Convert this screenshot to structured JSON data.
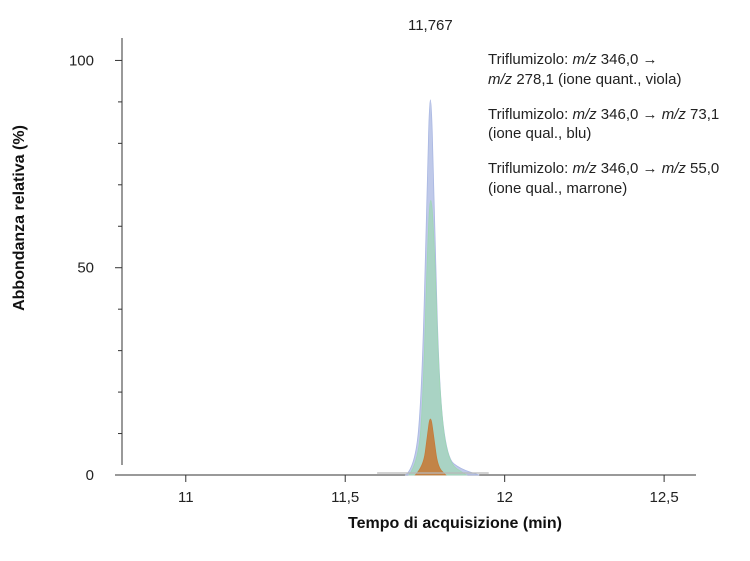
{
  "chart_data": {
    "type": "line",
    "title": "",
    "xlabel": "Tempo di acquisizione (min)",
    "ylabel": "Abbondanza relativa (%)",
    "xlim": [
      10.8,
      12.6
    ],
    "ylim": [
      0,
      103
    ],
    "x_ticks": [
      11,
      11.5,
      12,
      12.5
    ],
    "x_tick_labels": [
      "11",
      "11,5",
      "12",
      "12,5"
    ],
    "y_ticks": [
      0,
      50,
      100
    ],
    "y_tick_labels": [
      "0",
      "50",
      "100"
    ],
    "peak_label": "11,767",
    "peak_x": 11.767,
    "series": [
      {
        "name": "Triflumizolo: m/z 346,0 → m/z 278,1 (ione quant., viola)",
        "color": "#a9b7e2",
        "x": [
          11.69,
          11.72,
          11.74,
          11.755,
          11.767,
          11.78,
          11.795,
          11.82,
          11.86,
          11.92
        ],
        "y": [
          0,
          2,
          20,
          62,
          100,
          62,
          20,
          4,
          1.5,
          0
        ]
      },
      {
        "name": "Triflumizolo: m/z 346,0 → m/z 73,1 (ione qual., blu)",
        "color": "#9fd7b4",
        "x": [
          11.7,
          11.73,
          11.745,
          11.758,
          11.768,
          11.78,
          11.795,
          11.82,
          11.88
        ],
        "y": [
          0,
          3,
          20,
          55,
          70,
          55,
          20,
          3,
          0
        ]
      },
      {
        "name": "Triflumizolo: m/z 346,0 → m/z 55,0 (ione qual., marrone)",
        "color": "#c47b3a",
        "x": [
          11.72,
          11.745,
          11.757,
          11.767,
          11.778,
          11.79,
          11.815
        ],
        "y": [
          0,
          2,
          9,
          15,
          9,
          2,
          0
        ]
      }
    ],
    "legend": [
      {
        "pre": "Triflumizolo: ",
        "ital1": "m/z",
        "mid": " 346,0 → ",
        "ital2": "m/z",
        "post": " 278,1 (ione quant., viola)"
      },
      {
        "pre": "Triflumizolo: ",
        "ital1": "m/z",
        "mid": " 346,0 → ",
        "ital2": "m/z",
        "post": " 73,1 (ione qual., blu)"
      },
      {
        "pre": "Triflumizolo: ",
        "ital1": "m/z",
        "mid": " 346,0 → ",
        "ital2": "m/z",
        "post": " 55,0 (ione qual., marrone)"
      }
    ],
    "legend_position": "top-right",
    "grid": false
  }
}
